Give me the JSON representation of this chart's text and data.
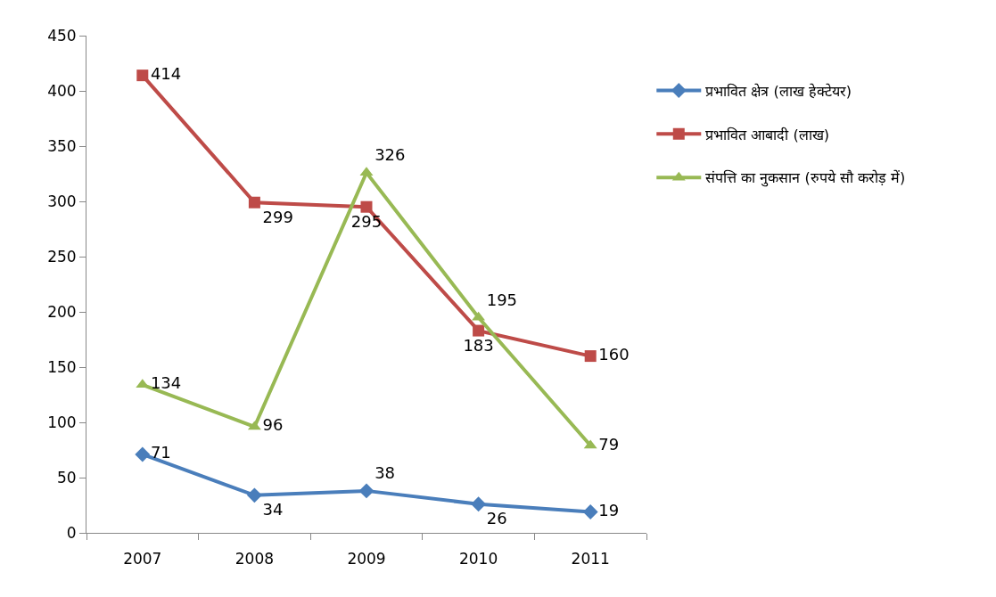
{
  "chart_data": {
    "type": "line",
    "categories": [
      "2007",
      "2008",
      "2009",
      "2010",
      "2011"
    ],
    "series": [
      {
        "name": "प्रभावित क्षेत्र (लाख हेक्टेयर)",
        "color": "#4a7ebb",
        "values": [
          71,
          34,
          38,
          26,
          19
        ],
        "marker": "diamond"
      },
      {
        "name": "प्रभावित आबादी (लाख)",
        "color": "#be4b48",
        "values": [
          414,
          299,
          295,
          183,
          160
        ],
        "marker": "square"
      },
      {
        "name": "संपत्ति का नुकसान (रुपये सौ करोड़ में)",
        "color": "#98b954",
        "values": [
          134,
          96,
          326,
          195,
          79
        ],
        "marker": "triangle"
      }
    ],
    "ylim": [
      0,
      450
    ],
    "yticks": [
      0,
      50,
      100,
      150,
      200,
      250,
      300,
      350,
      400,
      450
    ],
    "legend": "right",
    "data_labels": true
  }
}
